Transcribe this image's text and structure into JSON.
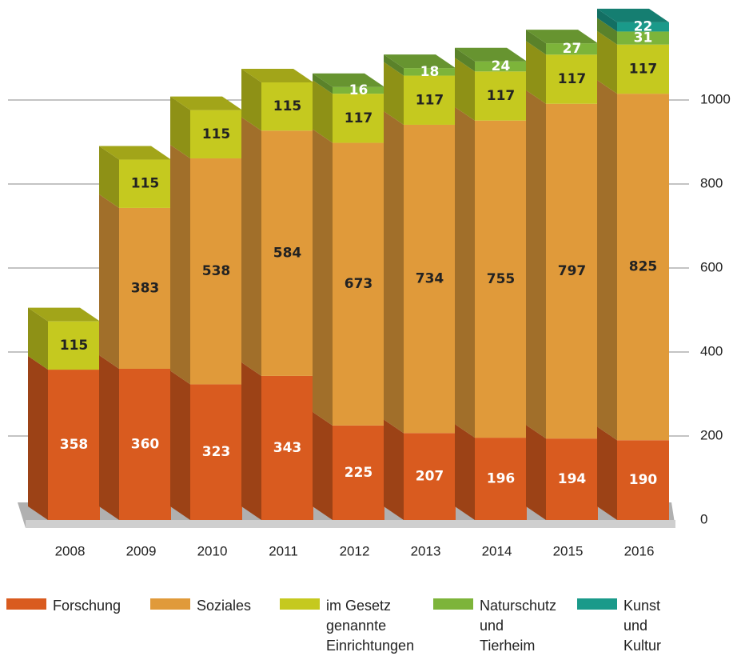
{
  "chart_data": {
    "type": "bar3d_stacked",
    "categories": [
      "2008",
      "2009",
      "2010",
      "2011",
      "2012",
      "2013",
      "2014",
      "2015",
      "2016"
    ],
    "series": [
      {
        "name": "Forschung",
        "color": "#d95b1f",
        "label_color": "#ffffff",
        "values": [
          358,
          360,
          323,
          343,
          225,
          207,
          196,
          194,
          190
        ]
      },
      {
        "name": "Soziales",
        "color": "#e09a3a",
        "label_color": "#222222",
        "values": [
          null,
          383,
          538,
          584,
          673,
          734,
          755,
          797,
          825
        ]
      },
      {
        "name": "im Gesetz\ngenannte\nEinrichtungen",
        "color": "#c5c91f",
        "label_color": "#222222",
        "values": [
          115,
          115,
          115,
          115,
          117,
          117,
          117,
          117,
          117
        ]
      },
      {
        "name": "Naturschutz\nund Tierheim",
        "color": "#7db43a",
        "label_color": "#ffffff",
        "values": [
          null,
          null,
          null,
          null,
          16,
          18,
          24,
          27,
          31
        ]
      },
      {
        "name": "Kunst und\nKultur",
        "color": "#1a9a8a",
        "label_color": "#ffffff",
        "values": [
          null,
          null,
          null,
          null,
          null,
          null,
          null,
          null,
          22
        ]
      }
    ],
    "ylim": [
      0,
      1200
    ],
    "yticks": [
      0,
      200,
      400,
      600,
      800,
      1000
    ],
    "grid": true,
    "legend": "bottom"
  }
}
